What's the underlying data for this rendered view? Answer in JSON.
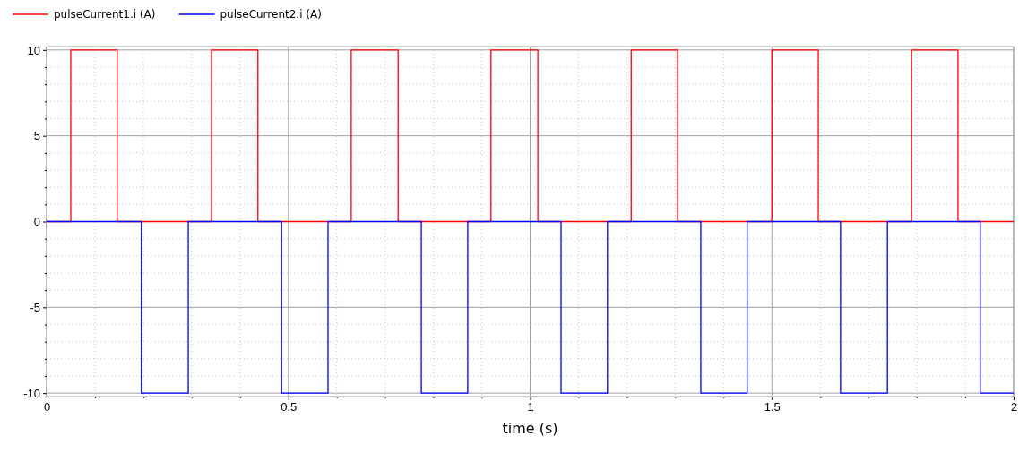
{
  "chart_data": {
    "type": "step",
    "xlabel": "time (s)",
    "series": [
      {
        "name": "pulseCurrent1.i (A)",
        "color": "#ff0000",
        "x": [
          0,
          0.05,
          0.146,
          0.341,
          0.437,
          0.63,
          0.727,
          0.919,
          1.016,
          1.209,
          1.305,
          1.5,
          1.596,
          1.789,
          1.885,
          2
        ],
        "values": [
          0,
          10,
          0,
          10,
          0,
          10,
          0,
          10,
          0,
          10,
          0,
          10,
          0,
          10,
          0,
          0
        ]
      },
      {
        "name": "pulseCurrent2.i (A)",
        "color": "#0000ff",
        "x": [
          0,
          0.196,
          0.293,
          0.486,
          0.582,
          0.775,
          0.871,
          1.064,
          1.16,
          1.353,
          1.449,
          1.642,
          1.739,
          1.931,
          2
        ],
        "values": [
          0,
          -10,
          0,
          -10,
          0,
          -10,
          0,
          -10,
          0,
          -10,
          0,
          -10,
          0,
          -10,
          -10
        ]
      }
    ],
    "xlim": [
      0,
      2
    ],
    "xticks": [
      0,
      {
        "value": 0.1,
        "label": null
      },
      {
        "value": 0.2,
        "label": null
      },
      {
        "value": 0.3,
        "label": null
      },
      {
        "value": 0.4,
        "label": null
      },
      0.5,
      {
        "value": 0.6,
        "label": null
      },
      {
        "value": 0.7,
        "label": null
      },
      {
        "value": 0.8,
        "label": null
      },
      {
        "value": 0.9,
        "label": null
      },
      1,
      {
        "value": 1.1,
        "label": null
      },
      {
        "value": 1.2,
        "label": null
      },
      {
        "value": 1.3,
        "label": null
      },
      {
        "value": 1.4,
        "label": null
      },
      1.5,
      {
        "value": 1.6,
        "label": null
      },
      {
        "value": 1.7,
        "label": null
      },
      {
        "value": 1.8,
        "label": null
      },
      {
        "value": 1.9,
        "label": null
      },
      2
    ],
    "ylim": [
      -10.2,
      10.2
    ],
    "yticks": [
      -10,
      {
        "value": -9,
        "label": null
      },
      {
        "value": -8,
        "label": null
      },
      {
        "value": -7,
        "label": null
      },
      {
        "value": -6,
        "label": null
      },
      -5,
      {
        "value": -4,
        "label": null
      },
      {
        "value": -3,
        "label": null
      },
      {
        "value": -2,
        "label": null
      },
      {
        "value": -1,
        "label": null
      },
      0,
      {
        "value": 1,
        "label": null
      },
      {
        "value": 2,
        "label": null
      },
      {
        "value": 3,
        "label": null
      },
      {
        "value": 4,
        "label": null
      },
      5,
      {
        "value": 6,
        "label": null
      },
      {
        "value": 7,
        "label": null
      },
      {
        "value": 8,
        "label": null
      },
      {
        "value": 9,
        "label": null
      },
      10
    ],
    "grid": true,
    "legend": "top left",
    "line_style": "solid"
  }
}
